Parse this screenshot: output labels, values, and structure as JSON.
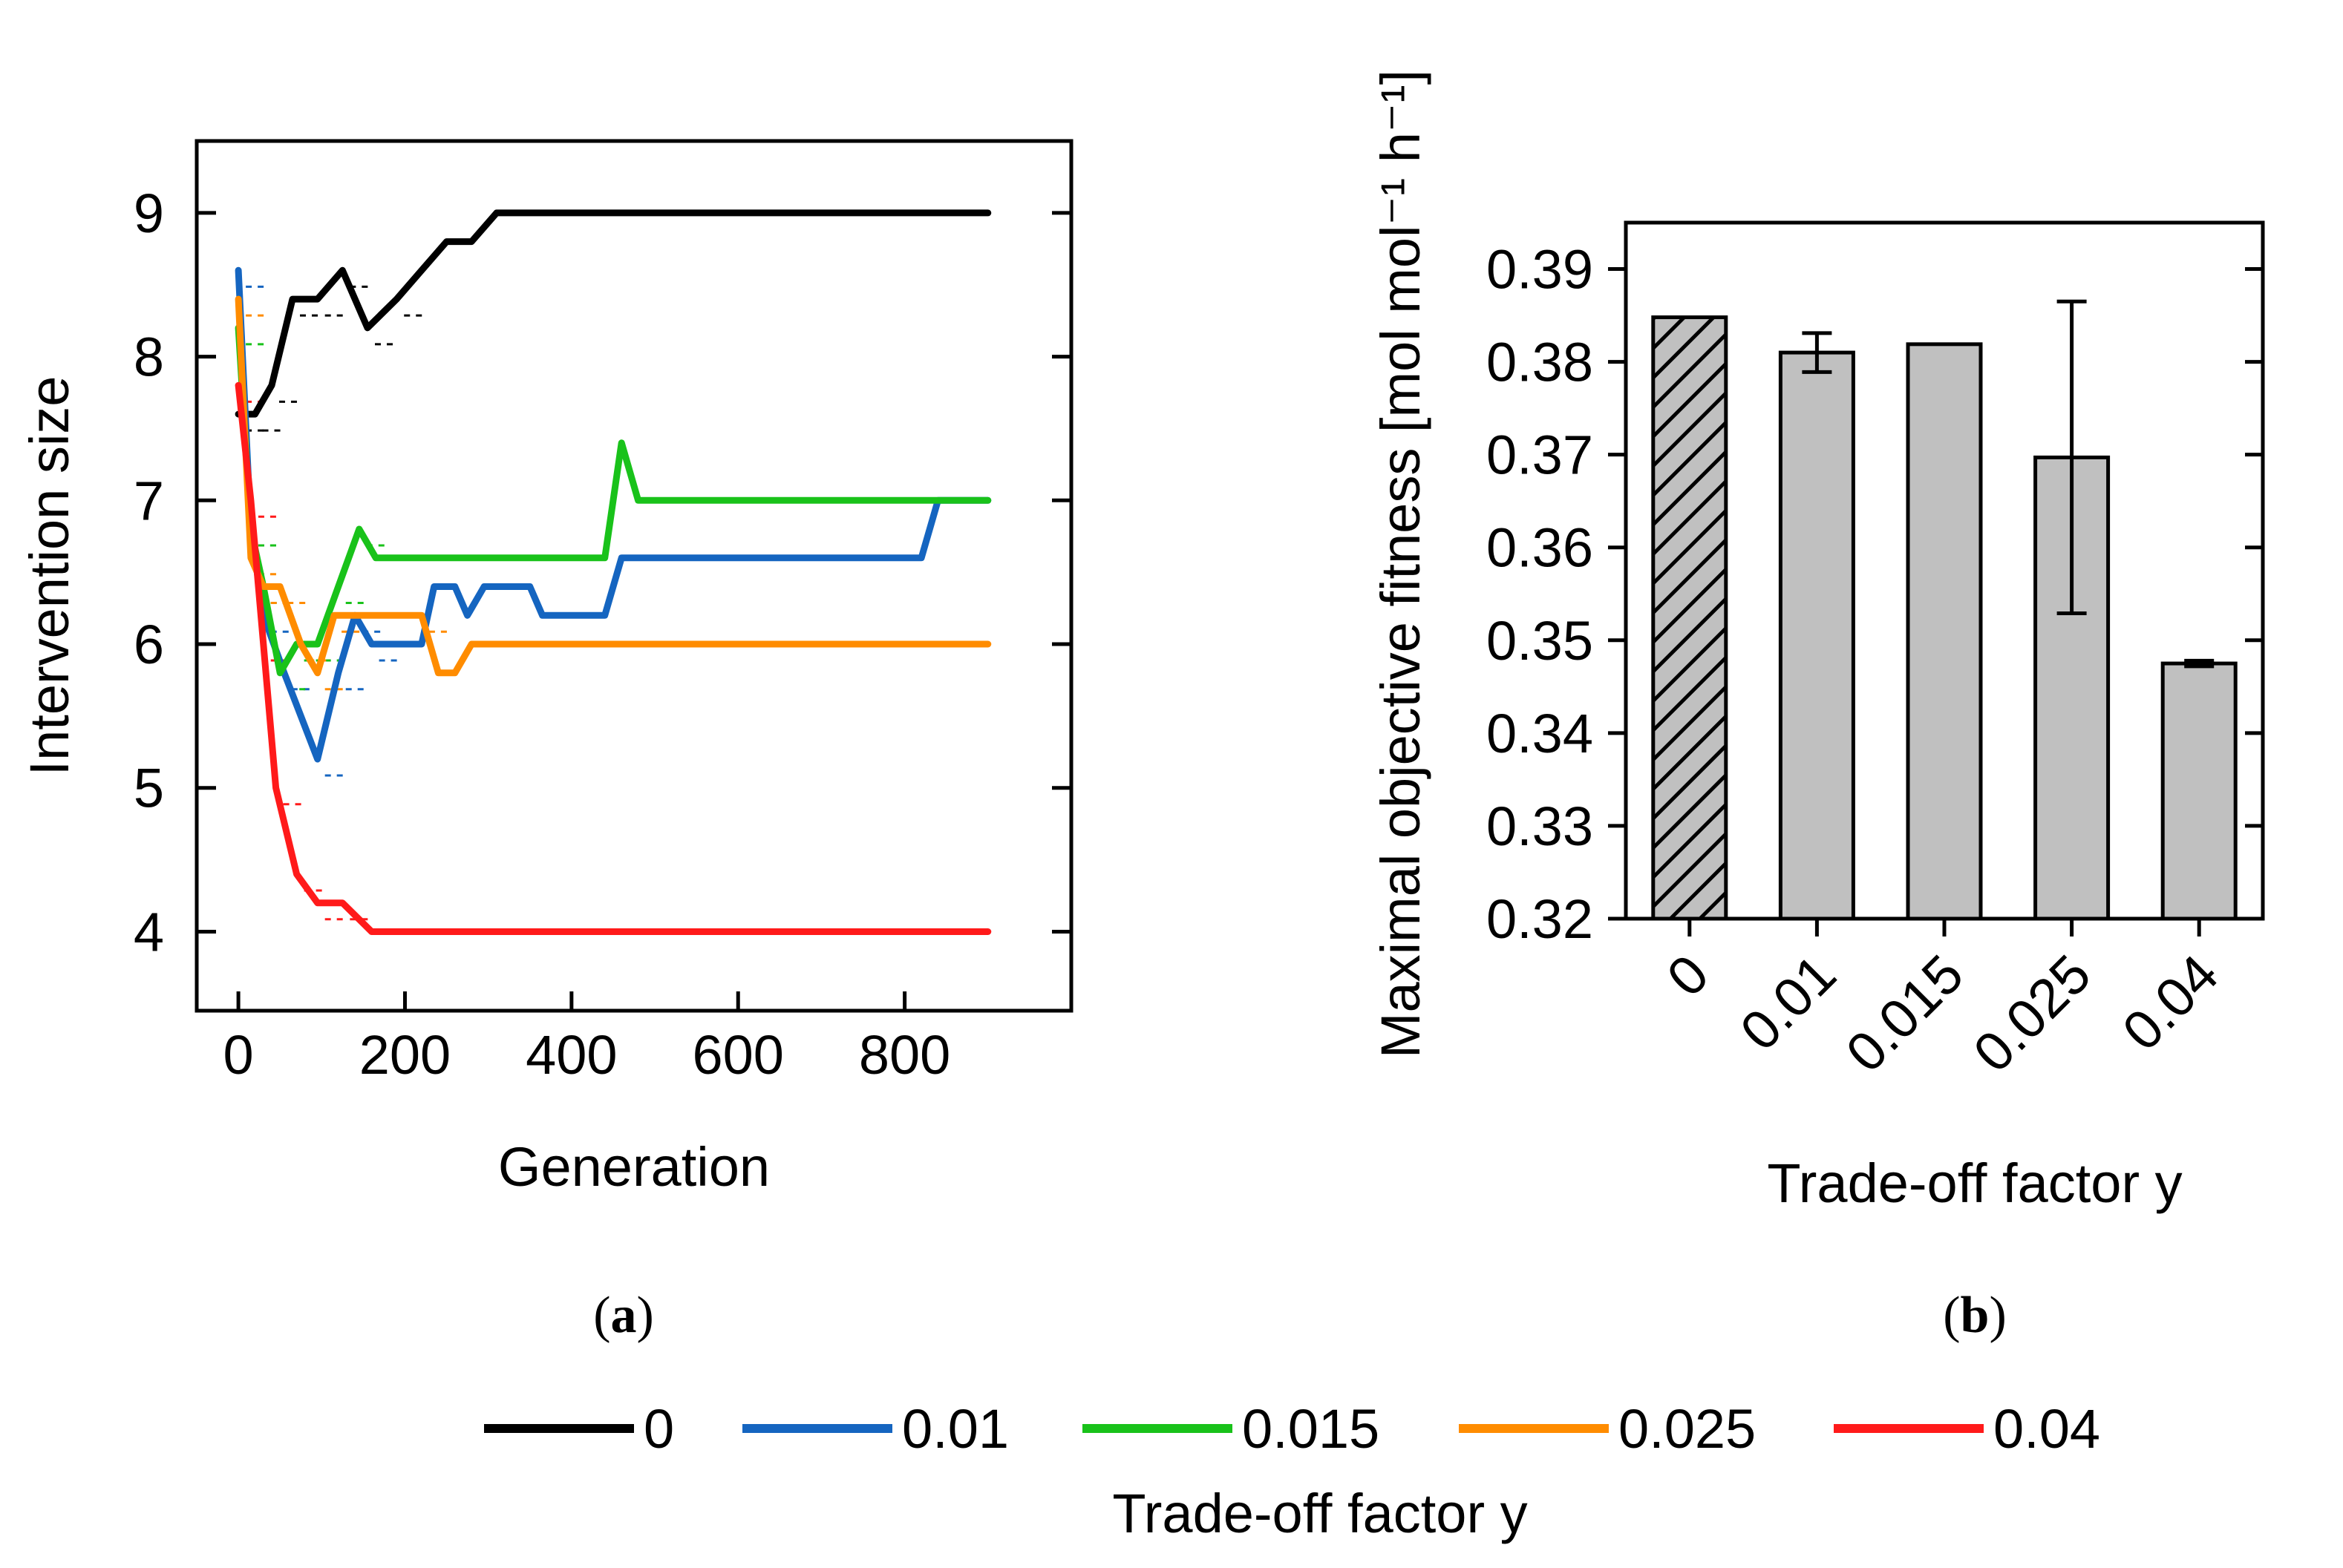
{
  "chart_data": [
    {
      "panel": "a",
      "type": "line",
      "xlabel": "Generation",
      "ylabel": "Intervention size",
      "xlim": [
        -50,
        1000
      ],
      "ylim": [
        3.45,
        9.5
      ],
      "xticks": [
        0,
        200,
        400,
        600,
        800
      ],
      "yticks": [
        4,
        5,
        6,
        7,
        8,
        9
      ],
      "series": [
        {
          "name": "0",
          "color": "#000000",
          "x": [
            0,
            20,
            40,
            65,
            95,
            125,
            155,
            190,
            220,
            250,
            280,
            310,
            900
          ],
          "y": [
            7.6,
            7.6,
            7.8,
            8.4,
            8.4,
            8.6,
            8.2,
            8.4,
            8.6,
            8.8,
            8.8,
            9.0,
            9.0
          ]
        },
        {
          "name": "0.01",
          "color": "#1565C0",
          "x": [
            0,
            15,
            30,
            55,
            95,
            120,
            140,
            160,
            220,
            235,
            260,
            275,
            295,
            310,
            350,
            365,
            440,
            460,
            820,
            840,
            900
          ],
          "y": [
            8.6,
            6.8,
            6.2,
            5.8,
            5.2,
            5.8,
            6.2,
            6.0,
            6.0,
            6.4,
            6.4,
            6.2,
            6.4,
            6.4,
            6.4,
            6.2,
            6.2,
            6.6,
            6.6,
            7.0,
            7.0
          ]
        },
        {
          "name": "0.015",
          "color": "#19C21A",
          "x": [
            0,
            15,
            30,
            50,
            70,
            95,
            120,
            145,
            165,
            440,
            460,
            480,
            900
          ],
          "y": [
            8.2,
            6.8,
            6.4,
            5.8,
            6.0,
            6.0,
            6.4,
            6.8,
            6.6,
            6.6,
            7.4,
            7.0,
            7.0
          ]
        },
        {
          "name": "0.025",
          "color": "#FF8C00",
          "x": [
            0,
            15,
            30,
            50,
            75,
            95,
            115,
            220,
            240,
            260,
            280,
            900
          ],
          "y": [
            8.4,
            6.6,
            6.4,
            6.4,
            6.0,
            5.8,
            6.2,
            6.2,
            5.8,
            5.8,
            6.0,
            6.0
          ]
        },
        {
          "name": "0.04",
          "color": "#FF1A1A",
          "x": [
            0,
            15,
            30,
            45,
            70,
            95,
            125,
            160,
            900
          ],
          "y": [
            7.8,
            7.0,
            6.0,
            5.0,
            4.4,
            4.2,
            4.2,
            4.0,
            4.0
          ]
        }
      ]
    },
    {
      "panel": "b",
      "type": "bar",
      "xlabel": "Trade-off factor y",
      "ylabel": "Maximal objective fitness [mol mol⁻¹ h⁻¹]",
      "ylim": [
        0.32,
        0.395
      ],
      "yticks": [
        0.32,
        0.33,
        0.34,
        0.35,
        0.36,
        0.37,
        0.38,
        0.39
      ],
      "ytick_labels": [
        "0.32",
        "0.33",
        "0.34",
        "0.35",
        "0.36",
        "0.37",
        "0.38",
        "0.39"
      ],
      "categories": [
        "0",
        "0.01",
        "0.015",
        "0.025",
        "0.04"
      ],
      "values": [
        0.3848,
        0.381,
        0.3819,
        0.3697,
        0.3475
      ],
      "errors": [
        0,
        0.0021,
        0,
        0.0168,
        0.0003
      ],
      "hatched": [
        true,
        false,
        false,
        false,
        false
      ],
      "bar_color": "#C0C0C0"
    }
  ],
  "panel_labels": {
    "a_open": "(",
    "a_letter": "a",
    "a_close": ")",
    "b_open": "(",
    "b_letter": "b",
    "b_close": ")"
  },
  "legend": {
    "title": "Trade-off factor y",
    "items": [
      {
        "label": "0",
        "color": "#000000"
      },
      {
        "label": "0.01",
        "color": "#1565C0"
      },
      {
        "label": "0.015",
        "color": "#19C21A"
      },
      {
        "label": "0.025",
        "color": "#FF8C00"
      },
      {
        "label": "0.04",
        "color": "#FF1A1A"
      }
    ]
  }
}
